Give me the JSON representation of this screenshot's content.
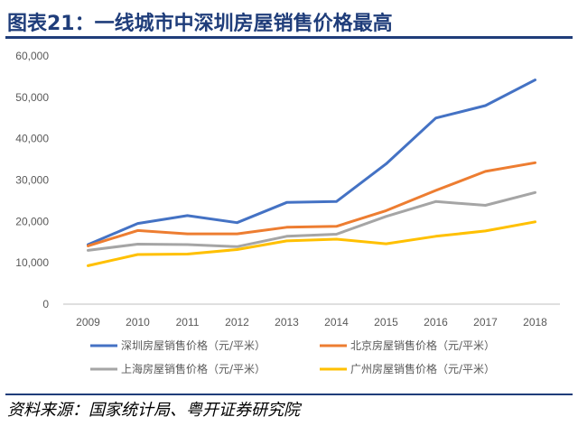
{
  "title": "图表21：一线城市中深圳房屋销售价格最高",
  "source": "资料来源：国家统计局、粤开证券研究院",
  "chart_data": {
    "type": "line",
    "x": [
      "2009",
      "2010",
      "2011",
      "2012",
      "2013",
      "2014",
      "2015",
      "2016",
      "2017",
      "2018"
    ],
    "ylim": [
      0,
      60000
    ],
    "yticks": [
      0,
      10000,
      20000,
      30000,
      40000,
      50000,
      60000
    ],
    "ytick_labels": [
      "0",
      "10,000",
      "20,000",
      "30,000",
      "40,000",
      "50,000",
      "60,000"
    ],
    "grid": false,
    "legend_position": "bottom",
    "series": [
      {
        "name": "深圳房屋销售价格（元/平米）",
        "color": "#4472c4",
        "values": [
          14400,
          19500,
          21400,
          19700,
          24600,
          24800,
          33900,
          45000,
          48000,
          54200
        ]
      },
      {
        "name": "北京房屋销售价格（元/平米）",
        "color": "#ed7d31",
        "values": [
          14100,
          17800,
          17000,
          17000,
          18600,
          18800,
          22600,
          27500,
          32100,
          34200
        ]
      },
      {
        "name": "上海房屋销售价格（元/平米）",
        "color": "#a5a5a5",
        "values": [
          13000,
          14500,
          14400,
          13900,
          16400,
          16900,
          21200,
          24800,
          23900,
          27000
        ]
      },
      {
        "name": "广州房屋销售价格（元/平米）",
        "color": "#ffc000",
        "values": [
          9300,
          12000,
          12100,
          13200,
          15300,
          15700,
          14600,
          16400,
          17700,
          19900
        ]
      }
    ]
  }
}
